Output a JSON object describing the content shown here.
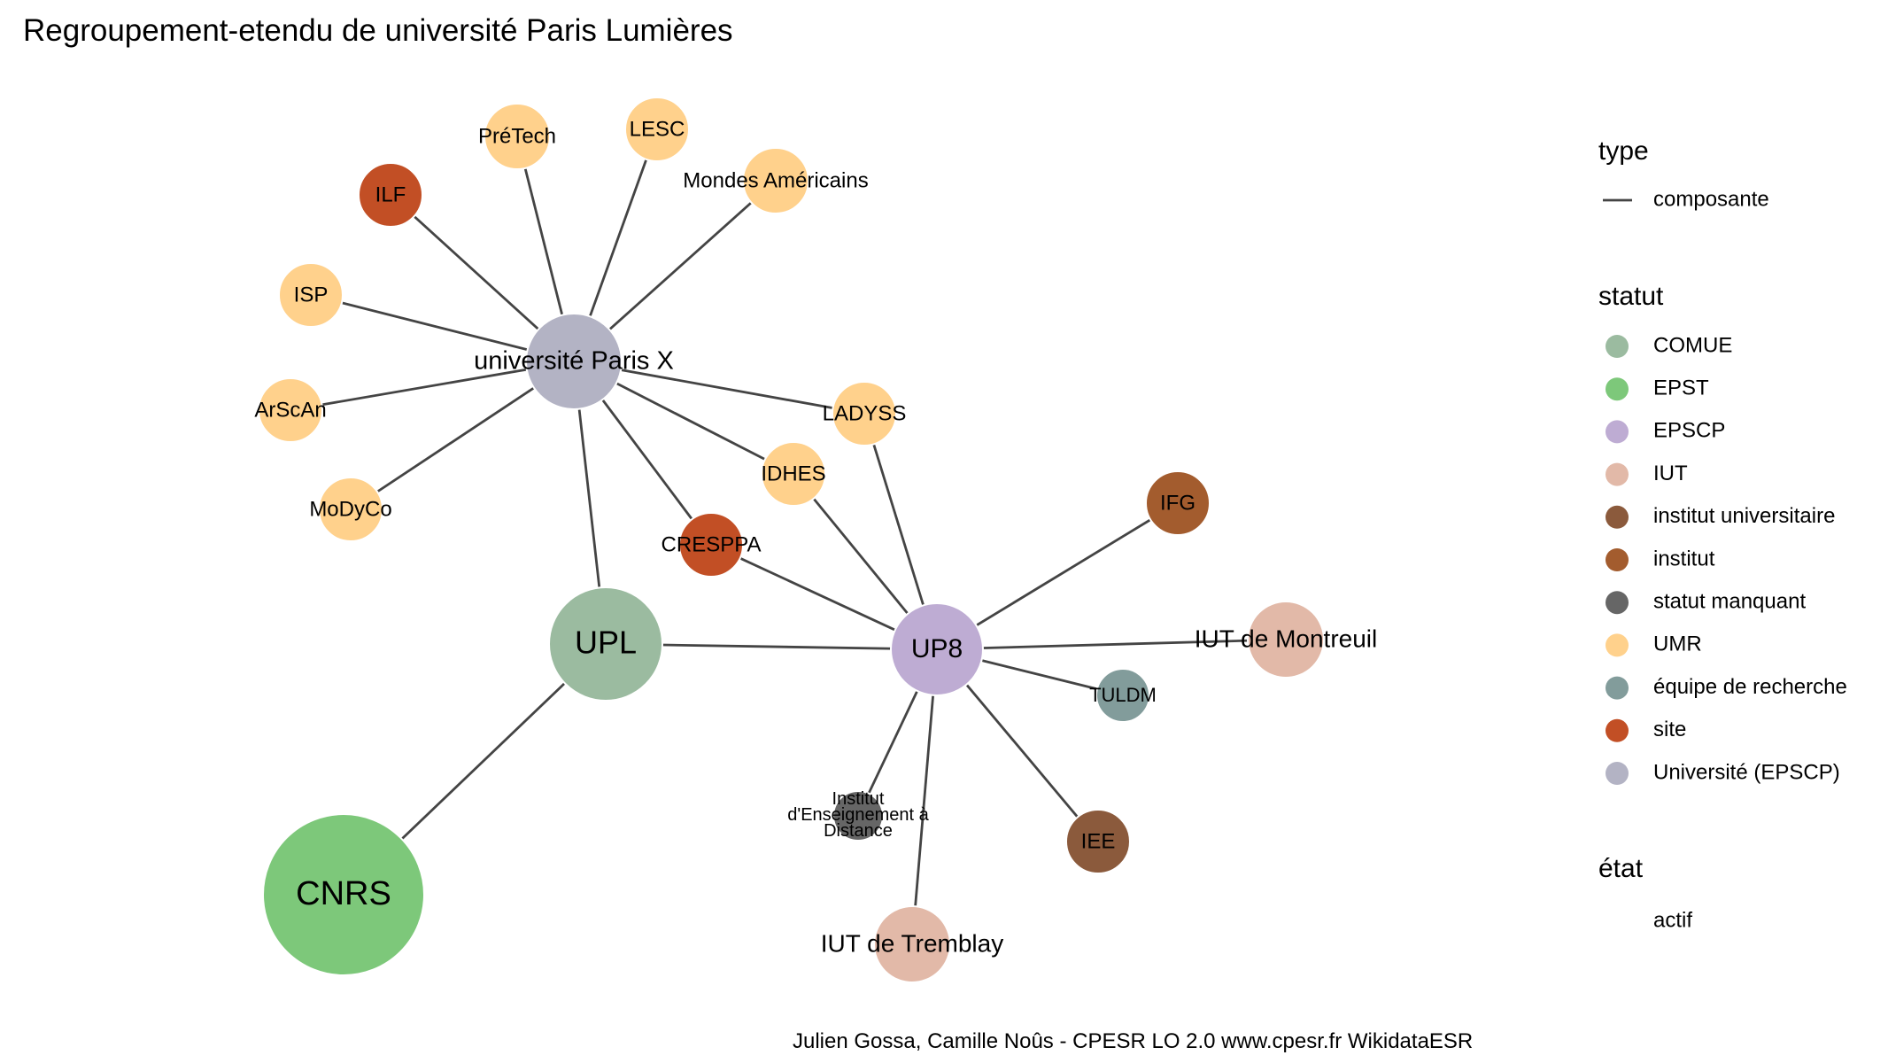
{
  "title": "Regroupement-etendu de université Paris Lumières",
  "caption": "Julien Gossa, Camille Noûs - CPESR LO 2.0 www.cpesr.fr WikidataESR",
  "colors": {
    "COMUE": "#9BBBA0",
    "EPST": "#7DC87A",
    "EPSCP": "#BEACD3",
    "IUT": "#E2B9A8",
    "institut universitaire": "#8B5A3C",
    "institut": "#A35C2E",
    "statut manquant": "#666666",
    "UMR": "#FFD18C",
    "équipe de recherche": "#829C9B",
    "site": "#C24F25",
    "Université (EPSCP)": "#B3B3C4",
    "edge": "#444444"
  },
  "legend": {
    "type": {
      "title": "type",
      "items": [
        "composante"
      ]
    },
    "statut": {
      "title": "statut",
      "items": [
        "COMUE",
        "EPST",
        "EPSCP",
        "IUT",
        "institut universitaire",
        "institut",
        "statut manquant",
        "UMR",
        "équipe de recherche",
        "site",
        "Université (EPSCP)"
      ]
    },
    "etat": {
      "title": "état",
      "items": [
        "actif"
      ]
    }
  },
  "nodes": [
    {
      "id": "paris10",
      "label": "université Paris X",
      "statut": "Université (EPSCP)"
    },
    {
      "id": "upl",
      "label": "UPL",
      "statut": "COMUE"
    },
    {
      "id": "cnrs",
      "label": "CNRS",
      "statut": "EPST"
    },
    {
      "id": "up8",
      "label": "UP8",
      "statut": "EPSCP"
    },
    {
      "id": "pretech",
      "label": "PréTech",
      "statut": "UMR"
    },
    {
      "id": "lesc",
      "label": "LESC",
      "statut": "UMR"
    },
    {
      "id": "ilf",
      "label": "ILF",
      "statut": "site"
    },
    {
      "id": "mondes",
      "label": "Mondes Américains",
      "statut": "UMR"
    },
    {
      "id": "isp",
      "label": "ISP",
      "statut": "UMR"
    },
    {
      "id": "arscan",
      "label": "ArScAn",
      "statut": "UMR"
    },
    {
      "id": "ladyss",
      "label": "LADYSS",
      "statut": "UMR"
    },
    {
      "id": "modyco",
      "label": "MoDyCo",
      "statut": "UMR"
    },
    {
      "id": "idhes",
      "label": "IDHES",
      "statut": "UMR"
    },
    {
      "id": "ifg",
      "label": "IFG",
      "statut": "institut"
    },
    {
      "id": "cresppa",
      "label": "CRESPPA",
      "statut": "site"
    },
    {
      "id": "iutmontreuil",
      "label": "IUT de Montreuil",
      "statut": "IUT"
    },
    {
      "id": "tuldm",
      "label": "TULDM",
      "statut": "équipe de recherche"
    },
    {
      "id": "ied",
      "label": "Institut d'Enseignement à Distance",
      "statut": "statut manquant"
    },
    {
      "id": "iee",
      "label": "IEE",
      "statut": "institut universitaire"
    },
    {
      "id": "iuttremblay",
      "label": "IUT de Tremblay",
      "statut": "IUT"
    }
  ],
  "edges": [
    [
      "paris10",
      "pretech"
    ],
    [
      "paris10",
      "lesc"
    ],
    [
      "paris10",
      "ilf"
    ],
    [
      "paris10",
      "mondes"
    ],
    [
      "paris10",
      "isp"
    ],
    [
      "paris10",
      "arscan"
    ],
    [
      "paris10",
      "ladyss"
    ],
    [
      "paris10",
      "modyco"
    ],
    [
      "paris10",
      "idhes"
    ],
    [
      "paris10",
      "cresppa"
    ],
    [
      "paris10",
      "upl"
    ],
    [
      "upl",
      "cnrs"
    ],
    [
      "upl",
      "up8"
    ],
    [
      "up8",
      "ladyss"
    ],
    [
      "up8",
      "idhes"
    ],
    [
      "up8",
      "cresppa"
    ],
    [
      "up8",
      "ifg"
    ],
    [
      "up8",
      "iutmontreuil"
    ],
    [
      "up8",
      "tuldm"
    ],
    [
      "up8",
      "ied"
    ],
    [
      "up8",
      "iee"
    ],
    [
      "up8",
      "iuttremblay"
    ]
  ]
}
